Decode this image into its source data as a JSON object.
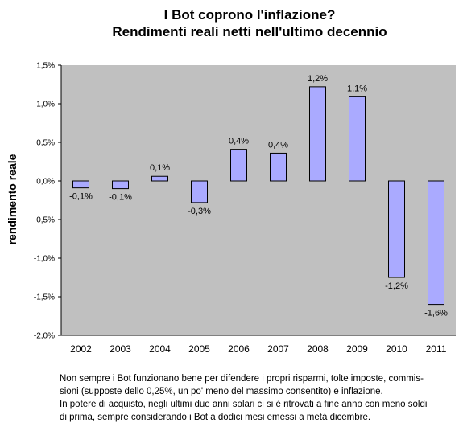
{
  "chart_data": {
    "type": "bar",
    "title_lines": [
      "I Bot coprono l'inflazione?",
      "Rendimenti reali netti nell'ultimo decennio"
    ],
    "xlabel": "",
    "ylabel": "rendimento reale",
    "categories": [
      "2002",
      "2003",
      "2004",
      "2005",
      "2006",
      "2007",
      "2008",
      "2009",
      "2010",
      "2011"
    ],
    "values": [
      -0.09,
      -0.1,
      0.06,
      -0.28,
      0.41,
      0.36,
      1.22,
      1.09,
      -1.25,
      -1.6
    ],
    "data_labels": [
      "-0,1%",
      "-0,1%",
      "0,1%",
      "-0,3%",
      "0,4%",
      "0,4%",
      "1,2%",
      "1,1%",
      "-1,2%",
      "-1,6%"
    ],
    "ylim": [
      -2.0,
      1.5
    ],
    "yticks": [
      1.5,
      1.0,
      0.5,
      0.0,
      -0.5,
      -1.0,
      -1.5,
      -2.0
    ],
    "ytick_labels": [
      "1,5%",
      "1,0%",
      "0,5%",
      "0,0%",
      "-0,5%",
      "-1,0%",
      "-1,5%",
      "-2,0%"
    ],
    "grid": false,
    "legend": "none",
    "colors": {
      "bar_fill": "#aaaaff",
      "bar_stroke": "#000000",
      "plot_bg": "#c0c0c0"
    }
  },
  "caption_lines": [
    "Non sempre i Bot funzionano bene per difendere i propri risparmi, tolte imposte, commis-",
    "sioni (supposte dello 0,25%, un po' meno del massimo consentito) e inflazione.",
    "In potere di acquisto, negli ultimi due anni solari ci si è ritrovati a fine anno con meno soldi",
    "di prima, sempre considerando i Bot a dodici mesi emessi a metà dicembre."
  ]
}
